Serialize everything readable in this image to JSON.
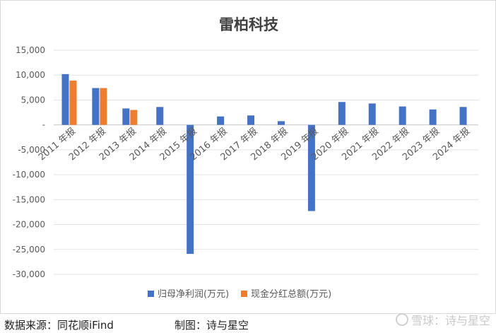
{
  "chart_data": {
    "type": "bar",
    "title": "雷柏科技",
    "categories": [
      "2011 年报",
      "2012 年报",
      "2013 年报",
      "2014 年报",
      "2015 年报",
      "2016 年报",
      "2017 年报",
      "2018 年报",
      "2019 年报",
      "2020 年报",
      "2021 年报",
      "2022 年报",
      "2023 年报",
      "2024 年报"
    ],
    "series": [
      {
        "name": "归母净利润(万元)",
        "color": "#4472C4",
        "values": [
          10200,
          7400,
          3300,
          3600,
          -25900,
          1700,
          1900,
          750,
          -17300,
          4600,
          4300,
          3700,
          3100,
          3600
        ]
      },
      {
        "name": "现金分红总额(万元)",
        "color": "#ED7D31",
        "values": [
          8900,
          7400,
          3000,
          null,
          null,
          null,
          null,
          null,
          null,
          null,
          null,
          null,
          null,
          null
        ]
      }
    ],
    "ylim": [
      -30000,
      15000
    ],
    "yticks": [
      15000,
      10000,
      5000,
      0,
      -5000,
      -10000,
      -15000,
      -20000,
      -25000,
      -30000
    ],
    "ytick_labels": [
      "15,000",
      "10,000",
      "5,000",
      "-",
      "-5,000",
      "-10,000",
      "-15,000",
      "-20,000",
      "-25,000",
      "-30,000"
    ],
    "grid": true,
    "legend_position": "bottom"
  },
  "footer": {
    "source": "数据来源：同花顺iFind",
    "author": "制图：诗与星空"
  },
  "watermark": {
    "text": "雪球：诗与星空"
  }
}
